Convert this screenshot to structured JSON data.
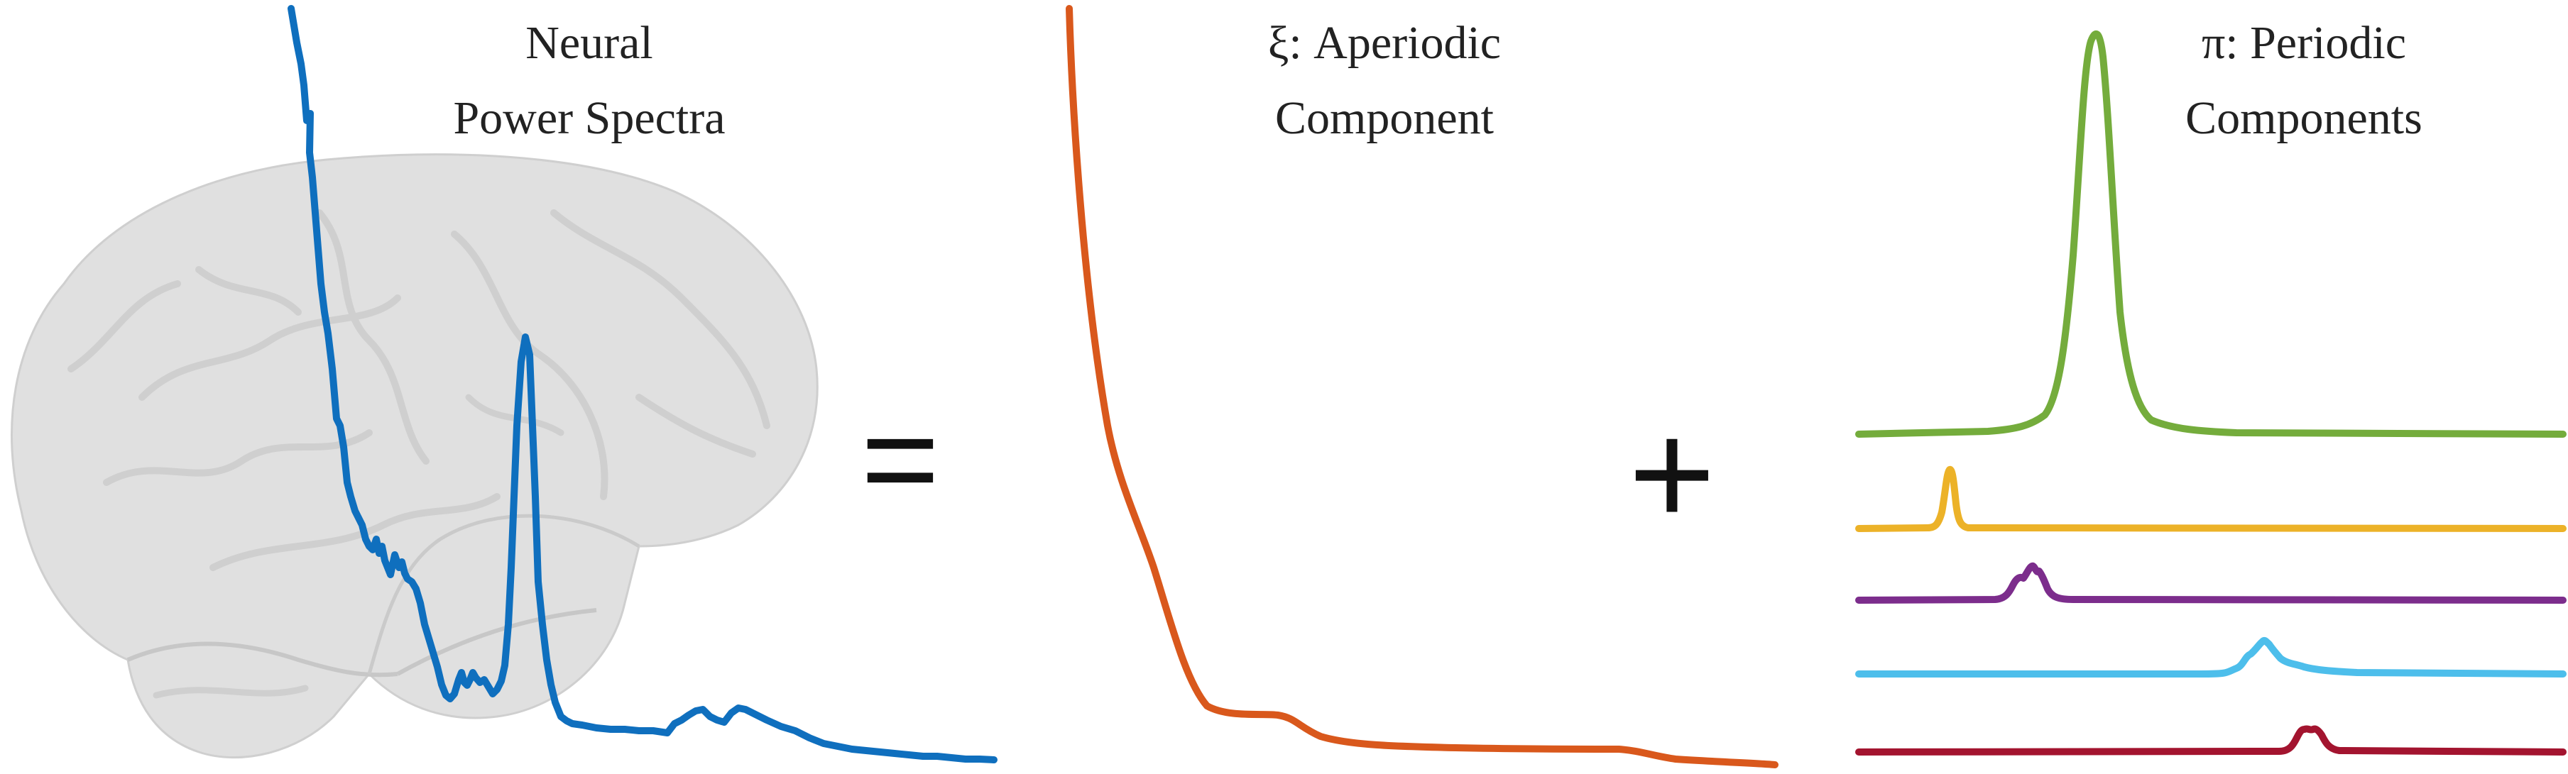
{
  "figure": {
    "panel_neural": {
      "title_line1": "Neural",
      "title_line2": "Power Spectra"
    },
    "operator_equals": "=",
    "panel_aperiodic": {
      "title_line1": "ξ: Aperiodic",
      "title_line2": "Component"
    },
    "operator_plus": "+",
    "panel_periodic": {
      "title_line1": "π: Periodic",
      "title_line2": "Components"
    }
  },
  "colors": {
    "neural_spectrum": "#0f6fbe",
    "aperiodic": "#d9581c",
    "periodic_green": "#74ac3c",
    "periodic_yellow": "#ecb228",
    "periodic_purple": "#7c2d8c",
    "periodic_lightblue": "#4dbeeb",
    "periodic_red": "#a3142f",
    "brain": "#b8b8b8"
  },
  "icons": {
    "background": "brain-icon"
  }
}
